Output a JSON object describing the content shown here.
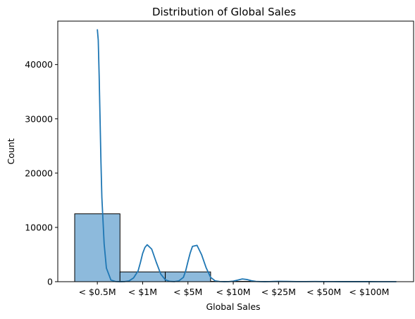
{
  "chart_data": {
    "type": "bar",
    "title": "Distribution of Global Sales",
    "xlabel": "Global Sales",
    "ylabel": "Count",
    "categories": [
      "< $0.5M",
      "< $1M",
      "< $5M",
      "< $10M",
      "< $25M",
      "< $50M",
      "< $100M"
    ],
    "series": [
      {
        "values": [
          12500,
          1800,
          1800,
          60,
          15,
          5,
          2
        ]
      }
    ],
    "kde": {
      "x": [
        0,
        0.02,
        0.04,
        0.06,
        0.08,
        0.1,
        0.15,
        0.2,
        0.3,
        0.4,
        0.5,
        0.6,
        0.7,
        0.8,
        0.9,
        0.95,
        1.0,
        1.05,
        1.1,
        1.2,
        1.3,
        1.4,
        1.5,
        1.6,
        1.7,
        1.8,
        1.9,
        1.95,
        2.0,
        2.05,
        2.1,
        2.2,
        2.3,
        2.4,
        2.5,
        2.6,
        2.7,
        2.8,
        2.9,
        3.0,
        3.1,
        3.2,
        3.3,
        3.4,
        3.5,
        3.6,
        3.7,
        3.8,
        3.9,
        4.0,
        4.2,
        4.4,
        4.6,
        4.8,
        5.0,
        5.2,
        5.4,
        5.6,
        5.8,
        6.0,
        6.2,
        6.4,
        6.6
      ],
      "y": [
        46500,
        44500,
        38000,
        30000,
        22000,
        15500,
        7000,
        2500,
        300,
        30,
        5,
        20,
        150,
        700,
        2000,
        3500,
        5200,
        6300,
        6800,
        6000,
        3600,
        1400,
        350,
        60,
        20,
        150,
        800,
        2000,
        3700,
        5300,
        6500,
        6700,
        5000,
        2600,
        800,
        150,
        30,
        10,
        20,
        100,
        300,
        500,
        400,
        180,
        50,
        15,
        8,
        15,
        40,
        60,
        40,
        20,
        20,
        30,
        20,
        15,
        10,
        8,
        6,
        5,
        4,
        3,
        2
      ]
    },
    "ylim": [
      0,
      48000
    ],
    "yticks": [
      0,
      10000,
      20000,
      30000,
      40000
    ],
    "colors": {
      "bar_fill": "#8dbadc",
      "bar_edge": "#000000",
      "kde_line": "#1f77b4"
    },
    "grid": false,
    "legend": "none"
  }
}
